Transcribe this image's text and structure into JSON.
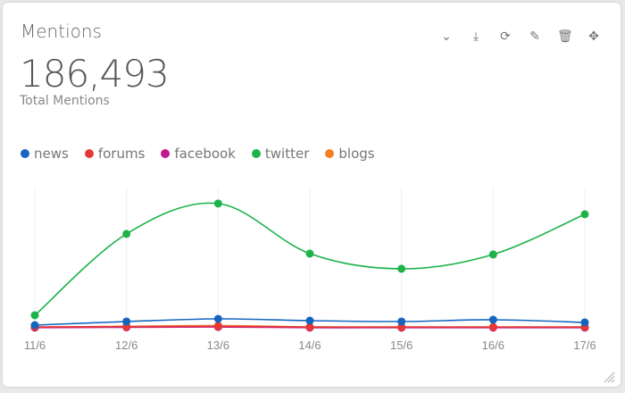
{
  "widget": {
    "title": "Mentions",
    "total_value": "186,493",
    "total_label": "Total Mentions",
    "tools": [
      {
        "icon": "chevron-down-icon",
        "glyph": "⌄"
      },
      {
        "icon": "download-icon",
        "glyph": "⤓"
      },
      {
        "icon": "refresh-icon",
        "glyph": "⟳"
      },
      {
        "icon": "edit-icon",
        "glyph": "✎"
      },
      {
        "icon": "trash-icon",
        "glyph": "🗑"
      },
      {
        "icon": "move-icon",
        "glyph": "✥"
      }
    ]
  },
  "chart_data": {
    "type": "line",
    "title": "Mentions",
    "x": [
      "11/6",
      "12/6",
      "13/6",
      "14/6",
      "15/6",
      "16/6",
      "17/6"
    ],
    "ylim": [
      0,
      40000
    ],
    "grid": "vertical",
    "legend_position": "top-left",
    "series": [
      {
        "name": "news",
        "color": "#1565c0",
        "values": [
          1040,
          2080,
          2860,
          2340,
          2080,
          2600,
          1820
        ]
      },
      {
        "name": "forums",
        "color": "#e53935",
        "values": [
          500,
          600,
          700,
          500,
          500,
          500,
          500
        ]
      },
      {
        "name": "facebook",
        "color": "#c2188b",
        "values": [
          300,
          400,
          500,
          300,
          300,
          300,
          300
        ]
      },
      {
        "name": "twitter",
        "color": "#1db34a",
        "values": [
          3900,
          27560,
          36400,
          21840,
          17420,
          21580,
          33280
        ]
      },
      {
        "name": "blogs",
        "color": "#f48024",
        "values": [
          400,
          700,
          900,
          500,
          400,
          400,
          400
        ]
      }
    ]
  }
}
